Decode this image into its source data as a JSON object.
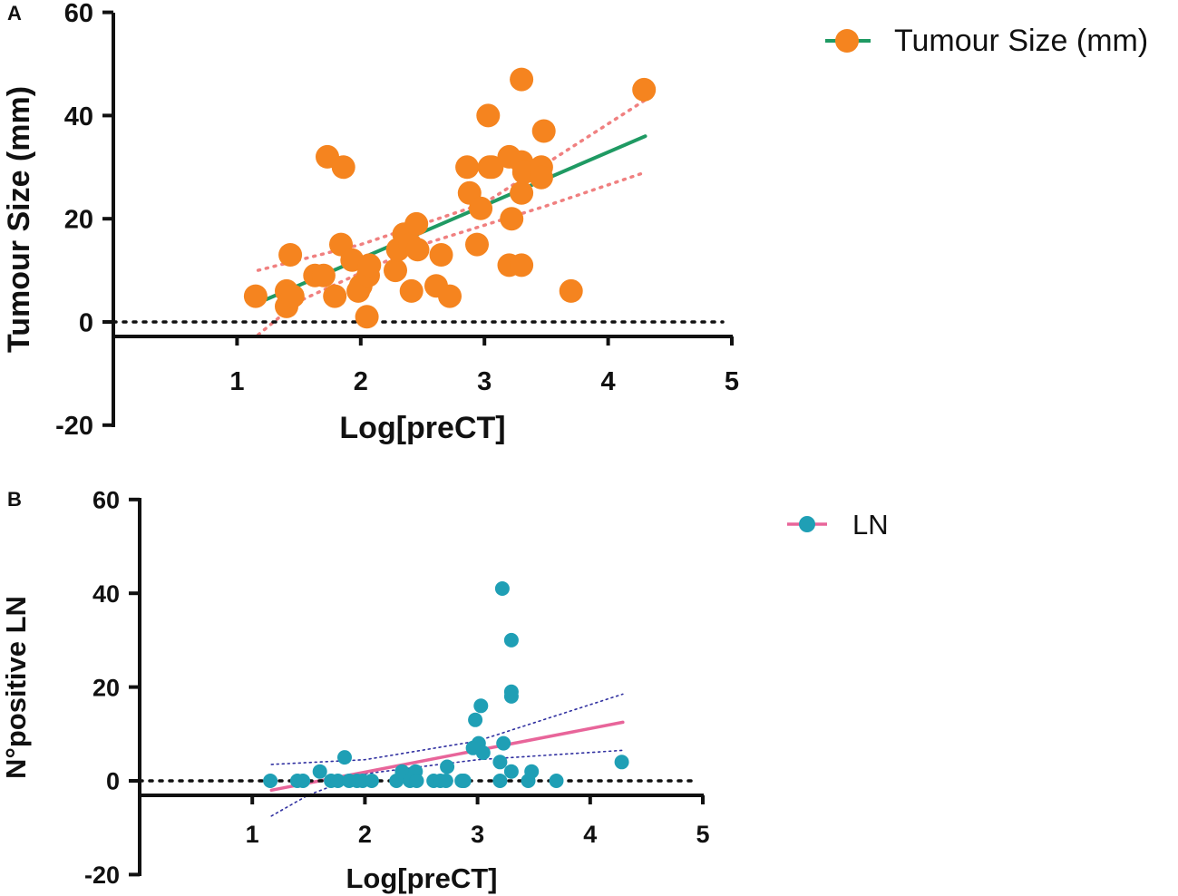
{
  "chart_data": [
    {
      "panel": "A",
      "type": "scatter",
      "xlabel": "Log[preCT]",
      "ylabel": "Tumour Size (mm)",
      "xlim": [
        0,
        5
      ],
      "ylim": [
        -20,
        60
      ],
      "xticks": [
        1,
        2,
        3,
        4,
        5
      ],
      "yticks": [
        -20,
        0,
        20,
        40,
        60
      ],
      "reference_line": {
        "y": 0,
        "style": "dotted"
      },
      "legend": {
        "label": "Tumour Size (mm)",
        "position": "top-right"
      },
      "colors": {
        "points": "#F5841F",
        "fit": "#1F9A63",
        "ci": "#F08080",
        "axis": "#111111"
      },
      "marker_size": "large",
      "points": [
        {
          "x": 1.15,
          "y": 5
        },
        {
          "x": 1.4,
          "y": 6
        },
        {
          "x": 1.4,
          "y": 3
        },
        {
          "x": 1.45,
          "y": 5
        },
        {
          "x": 1.43,
          "y": 13
        },
        {
          "x": 1.63,
          "y": 9
        },
        {
          "x": 1.7,
          "y": 9
        },
        {
          "x": 1.73,
          "y": 32
        },
        {
          "x": 1.79,
          "y": 5
        },
        {
          "x": 1.84,
          "y": 15
        },
        {
          "x": 1.86,
          "y": 30
        },
        {
          "x": 1.93,
          "y": 12
        },
        {
          "x": 1.98,
          "y": 6
        },
        {
          "x": 2.0,
          "y": 7
        },
        {
          "x": 2.06,
          "y": 9
        },
        {
          "x": 2.07,
          "y": 11
        },
        {
          "x": 2.05,
          "y": 1
        },
        {
          "x": 2.28,
          "y": 10
        },
        {
          "x": 2.3,
          "y": 14
        },
        {
          "x": 2.35,
          "y": 17
        },
        {
          "x": 2.4,
          "y": 15
        },
        {
          "x": 2.45,
          "y": 19
        },
        {
          "x": 2.46,
          "y": 14
        },
        {
          "x": 2.41,
          "y": 6
        },
        {
          "x": 2.61,
          "y": 7
        },
        {
          "x": 2.65,
          "y": 13
        },
        {
          "x": 2.72,
          "y": 5
        },
        {
          "x": 2.86,
          "y": 30
        },
        {
          "x": 2.88,
          "y": 25
        },
        {
          "x": 2.94,
          "y": 15
        },
        {
          "x": 2.97,
          "y": 22
        },
        {
          "x": 3.03,
          "y": 40
        },
        {
          "x": 3.04,
          "y": 30
        },
        {
          "x": 3.06,
          "y": 30
        },
        {
          "x": 3.2,
          "y": 32
        },
        {
          "x": 3.22,
          "y": 20
        },
        {
          "x": 3.2,
          "y": 11
        },
        {
          "x": 3.3,
          "y": 47
        },
        {
          "x": 3.3,
          "y": 31
        },
        {
          "x": 3.3,
          "y": 25
        },
        {
          "x": 3.32,
          "y": 29
        },
        {
          "x": 3.3,
          "y": 11
        },
        {
          "x": 3.46,
          "y": 30
        },
        {
          "x": 3.46,
          "y": 28
        },
        {
          "x": 3.48,
          "y": 37
        },
        {
          "x": 3.7,
          "y": 6
        },
        {
          "x": 4.29,
          "y": 45
        }
      ],
      "fit": {
        "x": [
          1.2,
          4.3
        ],
        "y": [
          4,
          36
        ]
      },
      "ci_upper": {
        "x": [
          1.17,
          2.0,
          3.0,
          4.3
        ],
        "y": [
          10,
          15,
          23,
          43
        ]
      },
      "ci_lower": {
        "x": [
          1.17,
          1.5,
          2.5,
          3.5,
          4.3
        ],
        "y": [
          -2.5,
          4,
          15,
          22.5,
          29
        ]
      }
    },
    {
      "panel": "B",
      "type": "scatter",
      "xlabel": "Log[preCT]",
      "ylabel": "N°positive LN",
      "xlim": [
        0,
        5
      ],
      "ylim": [
        -20,
        60
      ],
      "xticks": [
        1,
        2,
        3,
        4,
        5
      ],
      "yticks": [
        -20,
        0,
        20,
        40,
        60
      ],
      "reference_line": {
        "y": 0,
        "style": "dotted"
      },
      "legend": {
        "label": "LN",
        "position": "top-right"
      },
      "colors": {
        "points": "#1F9FB5",
        "fit": "#E8659A",
        "ci": "#3030A0",
        "axis": "#111111"
      },
      "marker_size": "small",
      "points": [
        {
          "x": 1.16,
          "y": 0
        },
        {
          "x": 1.4,
          "y": 0
        },
        {
          "x": 1.45,
          "y": 0
        },
        {
          "x": 1.6,
          "y": 2
        },
        {
          "x": 1.7,
          "y": 0
        },
        {
          "x": 1.76,
          "y": 0
        },
        {
          "x": 1.82,
          "y": 5
        },
        {
          "x": 1.86,
          "y": 0
        },
        {
          "x": 1.93,
          "y": 0
        },
        {
          "x": 1.98,
          "y": 0
        },
        {
          "x": 2.06,
          "y": 0
        },
        {
          "x": 2.28,
          "y": 0
        },
        {
          "x": 2.33,
          "y": 2
        },
        {
          "x": 2.4,
          "y": 0
        },
        {
          "x": 2.45,
          "y": 2
        },
        {
          "x": 2.46,
          "y": 0
        },
        {
          "x": 2.61,
          "y": 0
        },
        {
          "x": 2.67,
          "y": 0
        },
        {
          "x": 2.73,
          "y": 3
        },
        {
          "x": 2.72,
          "y": 0
        },
        {
          "x": 2.86,
          "y": 0
        },
        {
          "x": 2.88,
          "y": 0
        },
        {
          "x": 2.96,
          "y": 7
        },
        {
          "x": 2.98,
          "y": 13
        },
        {
          "x": 3.01,
          "y": 8
        },
        {
          "x": 3.03,
          "y": 16
        },
        {
          "x": 3.05,
          "y": 6
        },
        {
          "x": 3.2,
          "y": 4
        },
        {
          "x": 3.2,
          "y": 0
        },
        {
          "x": 3.22,
          "y": 41
        },
        {
          "x": 3.23,
          "y": 8
        },
        {
          "x": 3.3,
          "y": 30
        },
        {
          "x": 3.3,
          "y": 19
        },
        {
          "x": 3.3,
          "y": 18
        },
        {
          "x": 3.3,
          "y": 2
        },
        {
          "x": 3.45,
          "y": 0
        },
        {
          "x": 3.48,
          "y": 2
        },
        {
          "x": 3.7,
          "y": 0
        },
        {
          "x": 4.28,
          "y": 4
        }
      ],
      "fit": {
        "x": [
          1.17,
          4.29
        ],
        "y": [
          -2,
          12.5
        ]
      },
      "ci_upper": {
        "x": [
          1.17,
          2.0,
          3.0,
          4.29
        ],
        "y": [
          3.5,
          4.5,
          8.5,
          18.5
        ]
      },
      "ci_lower": {
        "x": [
          1.17,
          1.5,
          2.0,
          3.0,
          4.29
        ],
        "y": [
          -7.5,
          -3,
          1.5,
          4.5,
          6.5
        ]
      }
    }
  ]
}
